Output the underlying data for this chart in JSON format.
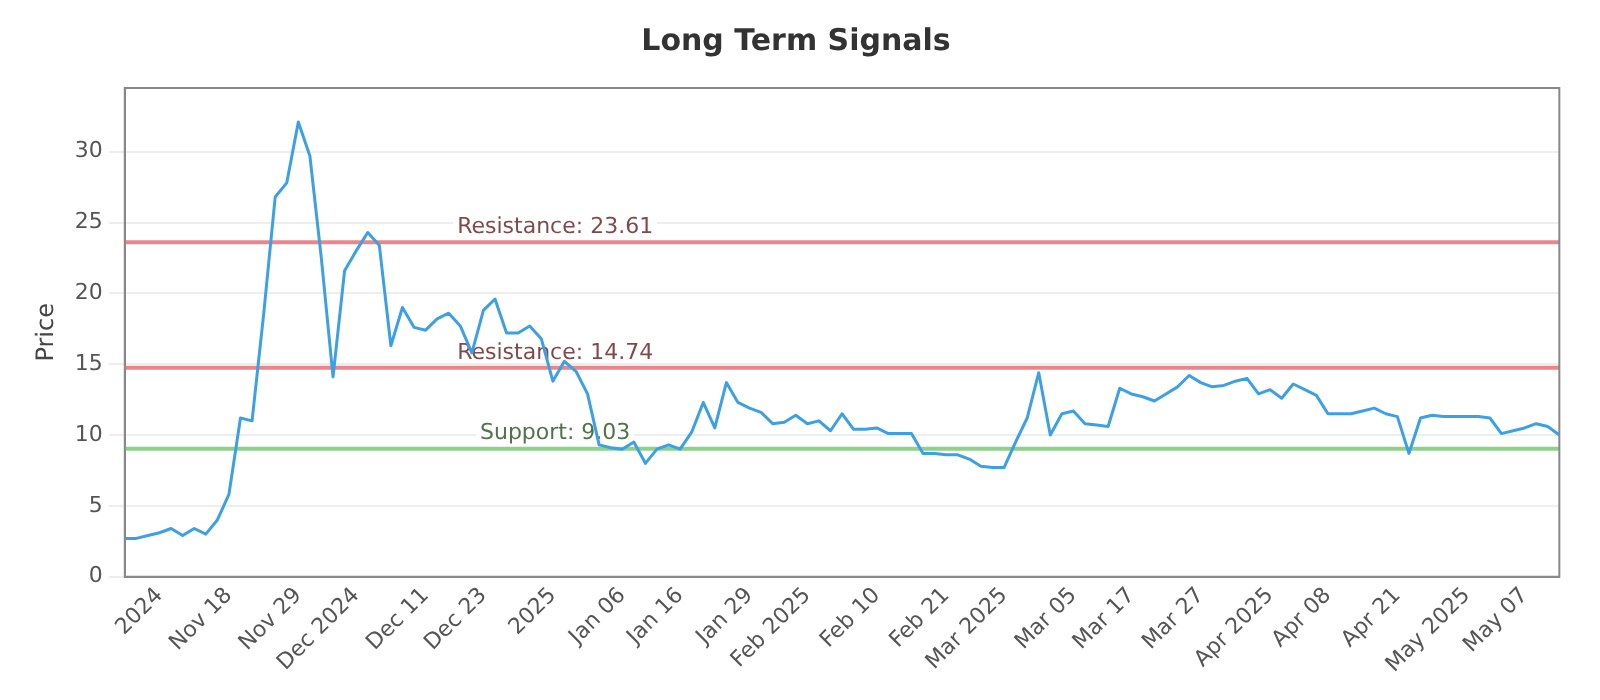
{
  "chart_data": {
    "type": "line",
    "title": "Long Term Signals",
    "ylabel": "Price",
    "categories": [
      null,
      null,
      null,
      "2024",
      null,
      null,
      null,
      null,
      null,
      "Nov 18",
      null,
      null,
      null,
      null,
      null,
      "Nov 29",
      null,
      null,
      null,
      null,
      "Dec 2024",
      null,
      null,
      null,
      null,
      null,
      "Dec 11",
      null,
      null,
      null,
      null,
      "Dec 23",
      null,
      null,
      null,
      null,
      null,
      "2025",
      null,
      null,
      null,
      null,
      null,
      "Jan 06",
      null,
      null,
      null,
      null,
      "Jan 16",
      null,
      null,
      null,
      null,
      null,
      "Jan 29",
      null,
      null,
      null,
      null,
      "Feb 2025",
      null,
      null,
      null,
      null,
      null,
      "Feb 10",
      null,
      null,
      null,
      null,
      null,
      "Feb 21",
      null,
      null,
      null,
      null,
      "Mar 2025",
      null,
      null,
      null,
      null,
      null,
      "Mar 05",
      null,
      null,
      null,
      null,
      "Mar 17",
      null,
      null,
      null,
      null,
      null,
      "Mar 27",
      null,
      null,
      null,
      null,
      null,
      "Apr 2025",
      null,
      null,
      null,
      null,
      "Apr 08",
      null,
      null,
      null,
      null,
      null,
      "Apr 21",
      null,
      null,
      null,
      null,
      null,
      "May 2025",
      null,
      null,
      null,
      null,
      "May 07",
      null,
      null,
      null
    ],
    "series": [
      {
        "color": "#3ea0e4",
        "values": [
          2.7,
          2.7,
          2.9,
          3.1,
          3.4,
          2.9,
          3.4,
          3.0,
          4.0,
          5.8,
          11.2,
          11.0,
          18.5,
          26.8,
          27.8,
          32.1,
          29.7,
          22.4,
          14.1,
          21.6,
          23.0,
          24.3,
          23.4,
          16.3,
          19.0,
          17.6,
          17.4,
          18.2,
          18.6,
          17.7,
          15.8,
          18.8,
          19.6,
          17.2,
          17.2,
          17.7,
          16.8,
          13.8,
          15.2,
          14.5,
          12.9,
          9.3,
          9.1,
          9.0,
          9.5,
          8.0,
          9.0,
          9.3,
          9.0,
          10.2,
          12.3,
          10.5,
          13.7,
          12.3,
          11.9,
          11.6,
          10.8,
          10.9,
          11.4,
          10.8,
          11.0,
          10.3,
          11.5,
          10.4,
          10.4,
          10.5,
          10.1,
          10.1,
          10.1,
          8.7,
          8.7,
          8.6,
          8.6,
          8.3,
          7.8,
          7.7,
          7.7,
          9.5,
          11.2,
          14.4,
          10.0,
          11.5,
          11.7,
          10.8,
          10.7,
          10.6,
          13.3,
          12.9,
          12.7,
          12.4,
          12.9,
          13.4,
          14.2,
          13.7,
          13.4,
          13.5,
          13.8,
          14.0,
          12.9,
          13.2,
          12.6,
          13.6,
          13.2,
          12.8,
          11.5,
          11.5,
          11.5,
          11.7,
          11.9,
          11.5,
          11.3,
          8.7,
          11.2,
          11.4,
          11.3,
          11.3,
          11.3,
          11.3,
          11.2,
          10.1,
          10.3,
          10.5,
          10.8,
          10.6,
          10.0
        ]
      }
    ],
    "ylim": [
      0,
      34.5
    ],
    "yticks": [
      0,
      5,
      10,
      15,
      20,
      25,
      30
    ],
    "grid": "y",
    "legend": false,
    "marker": "none",
    "line_style": "solid",
    "ref_lines": [
      {
        "axis": "y",
        "value": 23.61,
        "label": "Resistance: 23.61",
        "color": "#e8868c"
      },
      {
        "axis": "y",
        "value": 14.74,
        "label": "Resistance: 14.74",
        "color": "#e8868c"
      },
      {
        "axis": "y",
        "value": 9.03,
        "label": "Support: 9.03",
        "color": "#8fd18a"
      }
    ]
  }
}
